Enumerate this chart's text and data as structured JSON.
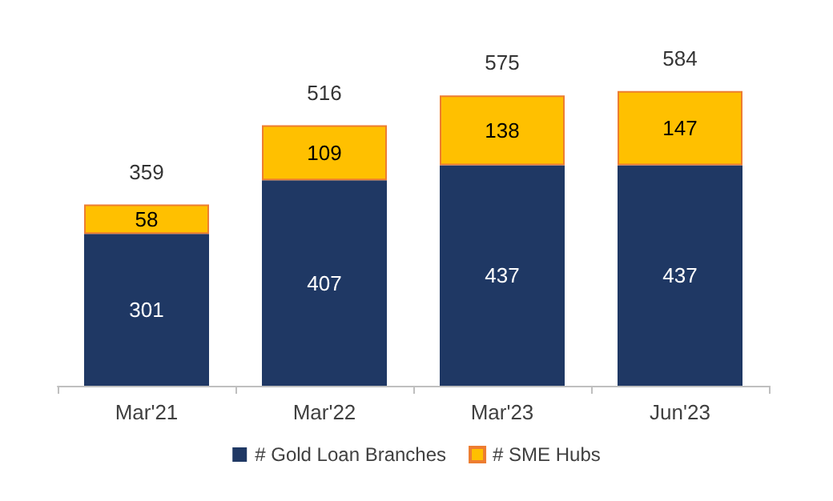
{
  "chart_data": {
    "type": "bar",
    "stacked": true,
    "data_labels": true,
    "legend": "bottom",
    "categories": [
      "Mar'21",
      "Mar'22",
      "Mar'23",
      "Jun'23"
    ],
    "series": [
      {
        "name": "# Gold Loan Branches",
        "color": "#1f3864",
        "values": [
          301,
          407,
          437,
          437
        ]
      },
      {
        "name": "# SME Hubs",
        "color": "#ffc000",
        "values": [
          58,
          109,
          138,
          147
        ]
      }
    ],
    "totals": [
      "359",
      "516",
      "575",
      "584"
    ]
  }
}
